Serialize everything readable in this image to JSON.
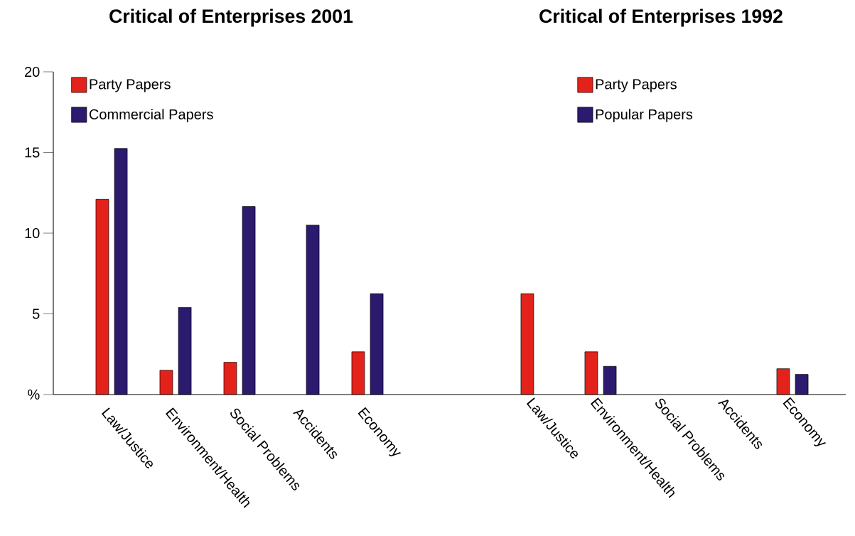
{
  "chart_data": [
    {
      "type": "bar",
      "title": "Critical of Enterprises 2001",
      "categories": [
        "Law/Justice",
        "Environment/Health",
        "Social Problems",
        "Accidents",
        "Economy"
      ],
      "series": [
        {
          "name": "Party Papers",
          "color": "#e3231b",
          "values": [
            12.1,
            1.5,
            2.0,
            null,
            2.65
          ]
        },
        {
          "name": "Commercial Papers",
          "color": "#2b1a6e",
          "values": [
            15.25,
            5.4,
            11.65,
            10.5,
            6.25
          ]
        }
      ],
      "ylim": [
        0,
        20
      ],
      "yticks": [
        {
          "value": 0,
          "label": "%"
        },
        5,
        10,
        15,
        20
      ],
      "legend": "top left",
      "grid": false
    },
    {
      "type": "bar",
      "title": "Critical of Enterprises 1992",
      "categories": [
        "Law/Justice",
        "Environment/Health",
        "Social Problems",
        "Accidents",
        "Economy"
      ],
      "series": [
        {
          "name": "Party Papers",
          "color": "#e3231b",
          "values": [
            6.25,
            2.65,
            null,
            null,
            1.6
          ]
        },
        {
          "name": "Popular Papers",
          "color": "#2b1a6e",
          "values": [
            null,
            1.75,
            null,
            null,
            1.25
          ]
        }
      ],
      "ylim": [
        0,
        20
      ],
      "tick_labels": "x",
      "legend": "top",
      "grid": false
    }
  ]
}
